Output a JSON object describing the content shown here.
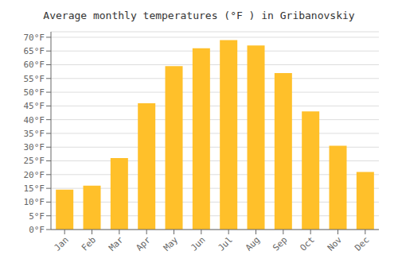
{
  "chart_data": {
    "type": "bar",
    "title": "Average monthly temperatures (°F ) in Gribanovskiy",
    "categories": [
      "Jan",
      "Feb",
      "Mar",
      "Apr",
      "May",
      "Jun",
      "Jul",
      "Aug",
      "Sep",
      "Oct",
      "Nov",
      "Dec"
    ],
    "values": [
      14.5,
      16,
      26,
      46,
      59.5,
      66,
      69,
      67,
      57,
      43,
      30.5,
      21
    ],
    "color": "#FFC02A",
    "ylim": [
      0,
      72
    ],
    "yticks": [
      {
        "value": 0,
        "label": "0°F"
      },
      {
        "value": 5,
        "label": "5°F"
      },
      {
        "value": 10,
        "label": "10°F"
      },
      {
        "value": 15,
        "label": "15°F"
      },
      {
        "value": 20,
        "label": "20°F"
      },
      {
        "value": 25,
        "label": "25°F"
      },
      {
        "value": 30,
        "label": "30°F"
      },
      {
        "value": 35,
        "label": "35°F"
      },
      {
        "value": 40,
        "label": "40°F"
      },
      {
        "value": 45,
        "label": "45°F"
      },
      {
        "value": 50,
        "label": "50°F"
      },
      {
        "value": 55,
        "label": "55°F"
      },
      {
        "value": 60,
        "label": "60°F"
      },
      {
        "value": 65,
        "label": "65°F"
      },
      {
        "value": 70,
        "label": "70°F"
      }
    ],
    "grid": true
  }
}
